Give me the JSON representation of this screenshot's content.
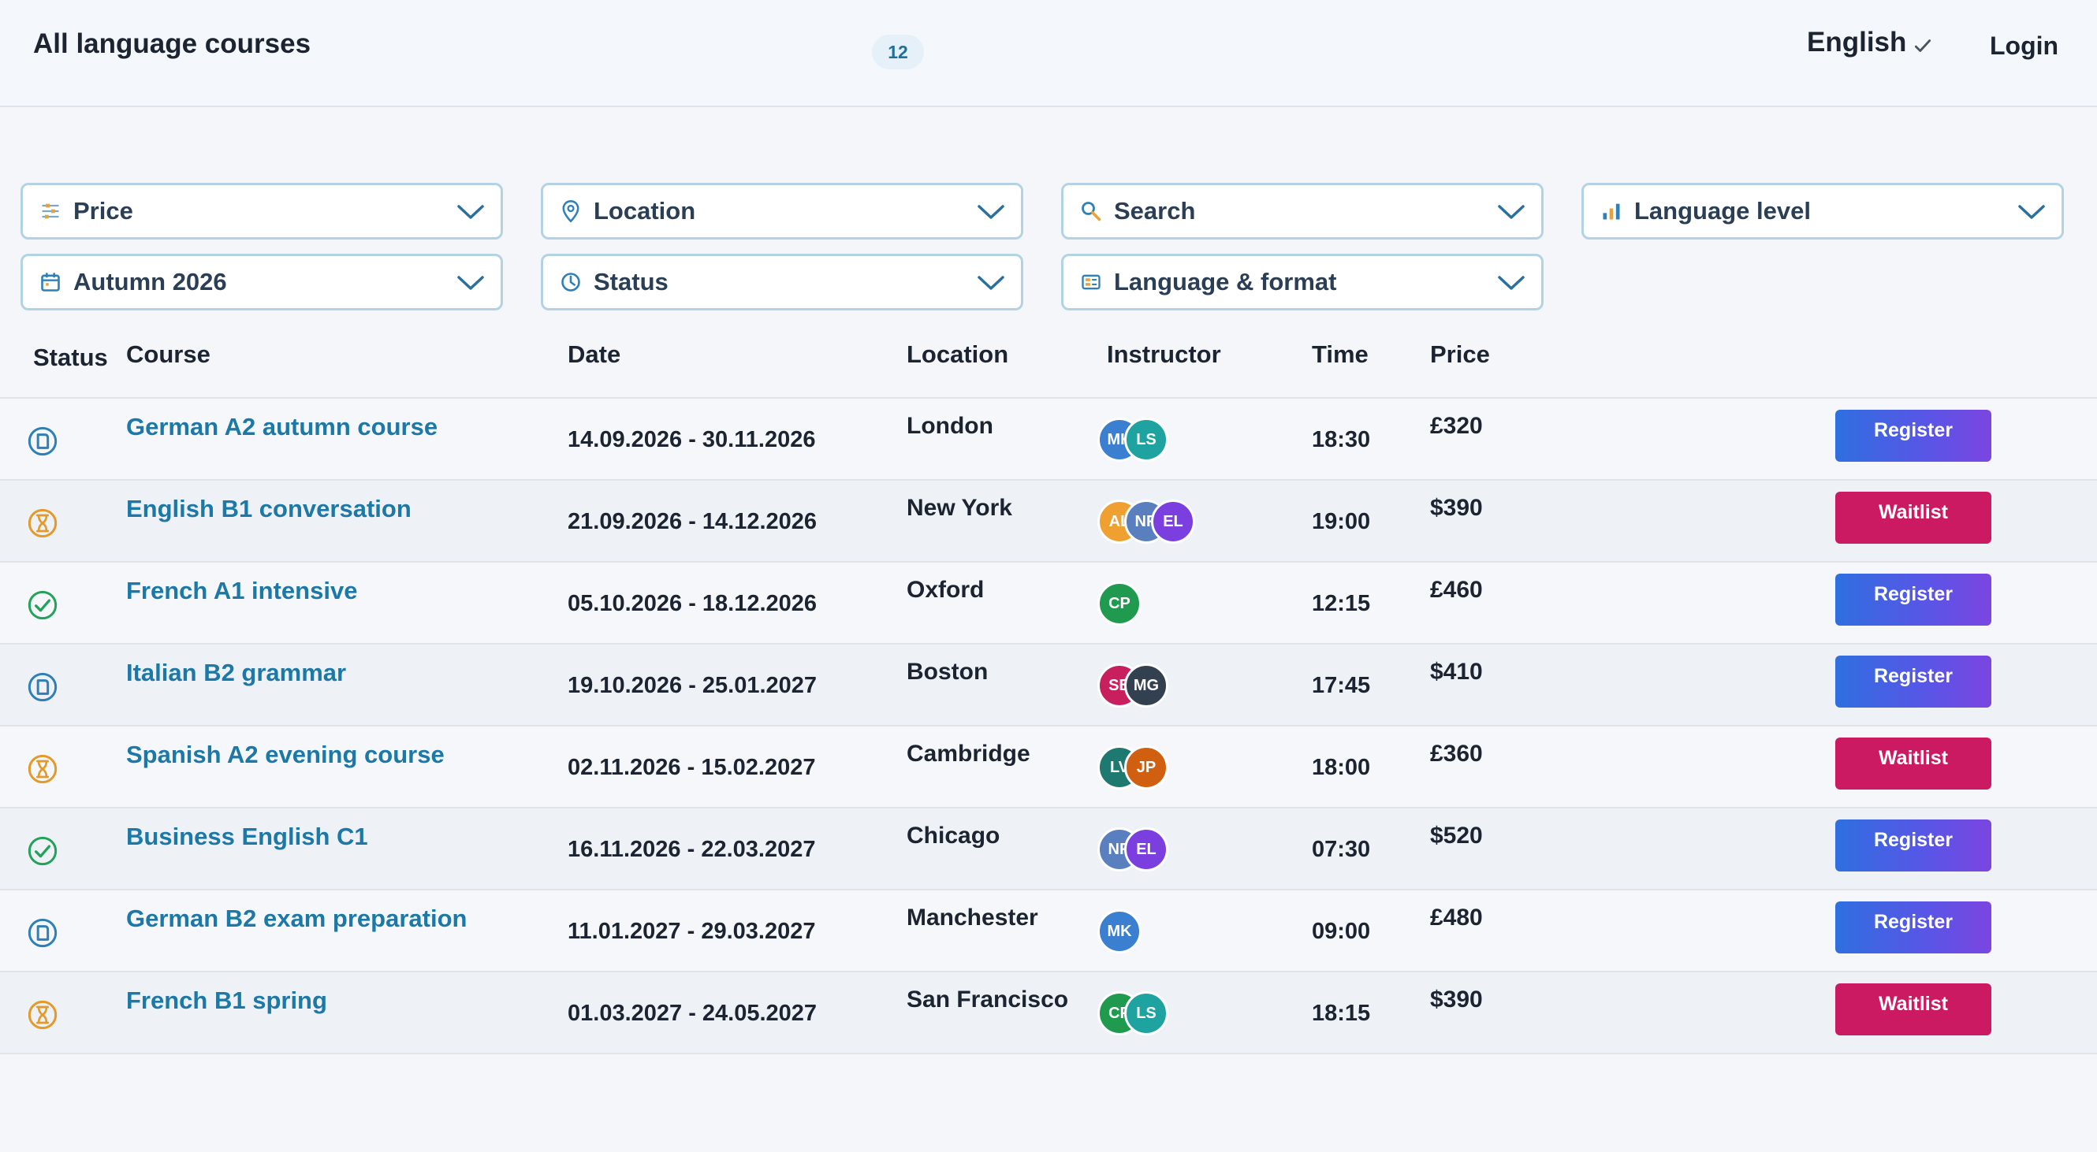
{
  "header": {
    "title": "All language courses",
    "count": "12",
    "language": "English",
    "login": "Login"
  },
  "filters": [
    {
      "label": "Price",
      "icon": "sliders-icon"
    },
    {
      "label": "Location",
      "icon": "map-pin-icon"
    },
    {
      "label": "Search",
      "icon": "search-icon"
    },
    {
      "label": "Language level",
      "icon": "bar-chart-icon"
    },
    {
      "label": "Autumn 2026",
      "icon": "calendar-icon"
    },
    {
      "label": "Status",
      "icon": "clock-icon"
    },
    {
      "label": "Language & format",
      "icon": "format-icon"
    }
  ],
  "table": {
    "headers": [
      "Status",
      "Course",
      "Date",
      "Location",
      "Instructor",
      "Time",
      "Price"
    ],
    "rows": [
      {
        "status": "planned",
        "course": "German A2 autumn course",
        "date": "14.09.2026 - 30.11.2026",
        "location": "London",
        "instructors": [
          {
            "initials": "MK",
            "color": "#3a7fd0"
          },
          {
            "initials": "LS",
            "color": "#1fa3a0"
          }
        ],
        "time": "18:30",
        "price": "£320",
        "action": "Register"
      },
      {
        "status": "waitlist",
        "course": "English B1 conversation",
        "date": "21.09.2026 - 14.12.2026",
        "location": "New York",
        "instructors": [
          {
            "initials": "AL",
            "color": "#f0a030"
          },
          {
            "initials": "NR",
            "color": "#5a7fbf"
          },
          {
            "initials": "EL",
            "color": "#7b3fe0"
          }
        ],
        "time": "19:00",
        "price": "$390",
        "action": "Waitlist"
      },
      {
        "status": "confirmed",
        "course": "French A1 intensive",
        "date": "05.10.2026 - 18.12.2026",
        "location": "Oxford",
        "instructors": [
          {
            "initials": "CP",
            "color": "#1f9a4e"
          }
        ],
        "time": "12:15",
        "price": "£460",
        "action": "Register"
      },
      {
        "status": "planned",
        "course": "Italian B2 grammar",
        "date": "19.10.2026 - 25.01.2027",
        "location": "Boston",
        "instructors": [
          {
            "initials": "SB",
            "color": "#c8205e"
          },
          {
            "initials": "MG",
            "color": "#33404f"
          }
        ],
        "time": "17:45",
        "price": "$410",
        "action": "Register"
      },
      {
        "status": "waitlist",
        "course": "Spanish A2 evening course",
        "date": "02.11.2026 - 15.02.2027",
        "location": "Cambridge",
        "instructors": [
          {
            "initials": "LV",
            "color": "#1e7a70"
          },
          {
            "initials": "JP",
            "color": "#d06010"
          }
        ],
        "time": "18:00",
        "price": "£360",
        "action": "Waitlist"
      },
      {
        "status": "confirmed",
        "course": "Business English C1",
        "date": "16.11.2026 - 22.03.2027",
        "location": "Chicago",
        "instructors": [
          {
            "initials": "NR",
            "color": "#5a7fbf"
          },
          {
            "initials": "EL",
            "color": "#7b3fe0"
          }
        ],
        "time": "07:30",
        "price": "$520",
        "action": "Register"
      },
      {
        "status": "planned",
        "course": "German B2 exam preparation",
        "date": "11.01.2027 - 29.03.2027",
        "location": "Manchester",
        "instructors": [
          {
            "initials": "MK",
            "color": "#3a7fd0"
          }
        ],
        "time": "09:00",
        "price": "£480",
        "action": "Register"
      },
      {
        "status": "waitlist",
        "course": "French B1 spring",
        "date": "01.03.2027 - 24.05.2027",
        "location": "San Francisco",
        "instructors": [
          {
            "initials": "CP",
            "color": "#1f9a4e"
          },
          {
            "initials": "LS",
            "color": "#1fa3a0"
          }
        ],
        "time": "18:15",
        "price": "$390",
        "action": "Waitlist"
      }
    ]
  },
  "colors": {
    "planned": "#2f7fb8",
    "waitlist": "#e39a2a",
    "confirmed": "#23a35a",
    "register_from": "#2f6fe0",
    "register_to": "#7b45e0",
    "waitlist_button": "#cc1a62",
    "link": "#1c78a6"
  }
}
